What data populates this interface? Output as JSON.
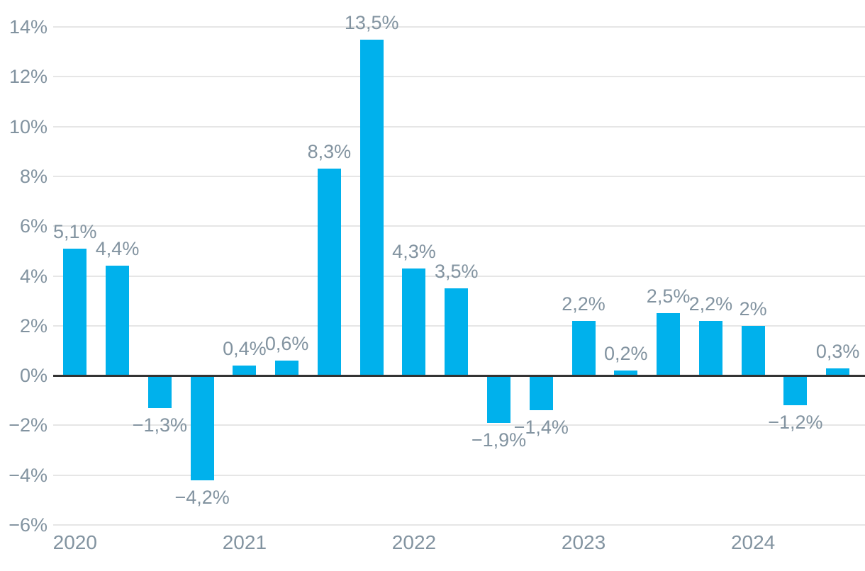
{
  "chart_data": {
    "type": "bar",
    "title": "",
    "xlabel": "",
    "ylabel": "",
    "values": [
      5.1,
      4.4,
      -1.3,
      -4.2,
      0.4,
      0.6,
      8.3,
      13.5,
      4.3,
      3.5,
      -1.9,
      -1.4,
      2.2,
      0.2,
      2.5,
      2.2,
      2,
      -1.2,
      0.3
    ],
    "value_labels": [
      "5,1%",
      "4,4%",
      "−1,3%",
      "−4,2%",
      "0,4%",
      "0,6%",
      "8,3%",
      "13,5%",
      "4,3%",
      "3,5%",
      "−1,9%",
      "−1,4%",
      "2,2%",
      "0,2%",
      "2,5%",
      "2,2%",
      "2%",
      "−1,2%",
      "0,3%"
    ],
    "x_tick_labels": [
      "2020",
      "2021",
      "2022",
      "2023",
      "2024"
    ],
    "x_tick_bar_index": [
      0,
      4,
      8,
      12,
      16
    ],
    "bars_per_year": [
      4,
      4,
      4,
      4,
      3
    ],
    "y_tick_values": [
      14,
      12,
      10,
      8,
      6,
      4,
      2,
      0,
      -2,
      -4,
      -6
    ],
    "y_tick_labels": [
      "14%",
      "12%",
      "10%",
      "8%",
      "6%",
      "4%",
      "2%",
      "0%",
      "−2%",
      "−4%",
      "−6%"
    ],
    "ylim": [
      -6,
      14
    ],
    "grid": "horizontal-only",
    "legend": "none",
    "decimal_separator": ",",
    "colors": {
      "bar": "#00b1ec",
      "grid": "#e6e6e6",
      "zero_line": "#333333",
      "text": "#8293a0"
    }
  }
}
